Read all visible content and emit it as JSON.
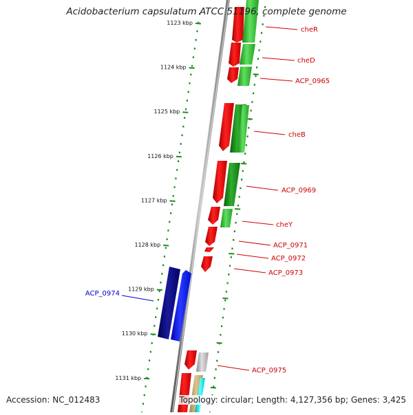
{
  "title": "Acidobacterium capsulatum ATCC 51196, complete genome",
  "footer": {
    "accession": "Accession: NC_012483",
    "summary": "Topology: circular; Length: 4,127,356 bp; Genes: 3,425"
  },
  "ticks": [
    "1123 kbp",
    "1124 kbp",
    "1125 kbp",
    "1126 kbp",
    "1127 kbp",
    "1128 kbp",
    "1129 kbp",
    "1130 kbp",
    "1131 kbp"
  ],
  "labels": [
    {
      "text": "cheR",
      "color": "#cc0000"
    },
    {
      "text": "cheD",
      "color": "#cc0000"
    },
    {
      "text": "ACP_0965",
      "color": "#cc0000"
    },
    {
      "text": "cheB",
      "color": "#cc0000"
    },
    {
      "text": "ACP_0969",
      "color": "#cc0000"
    },
    {
      "text": "cheY",
      "color": "#cc0000"
    },
    {
      "text": "ACP_0971",
      "color": "#cc0000"
    },
    {
      "text": "ACP_0972",
      "color": "#cc0000"
    },
    {
      "text": "ACP_0973",
      "color": "#cc0000"
    },
    {
      "text": "ACP_0974",
      "color": "#0000cc"
    },
    {
      "text": "ACP_0975",
      "color": "#cc0000"
    }
  ]
}
